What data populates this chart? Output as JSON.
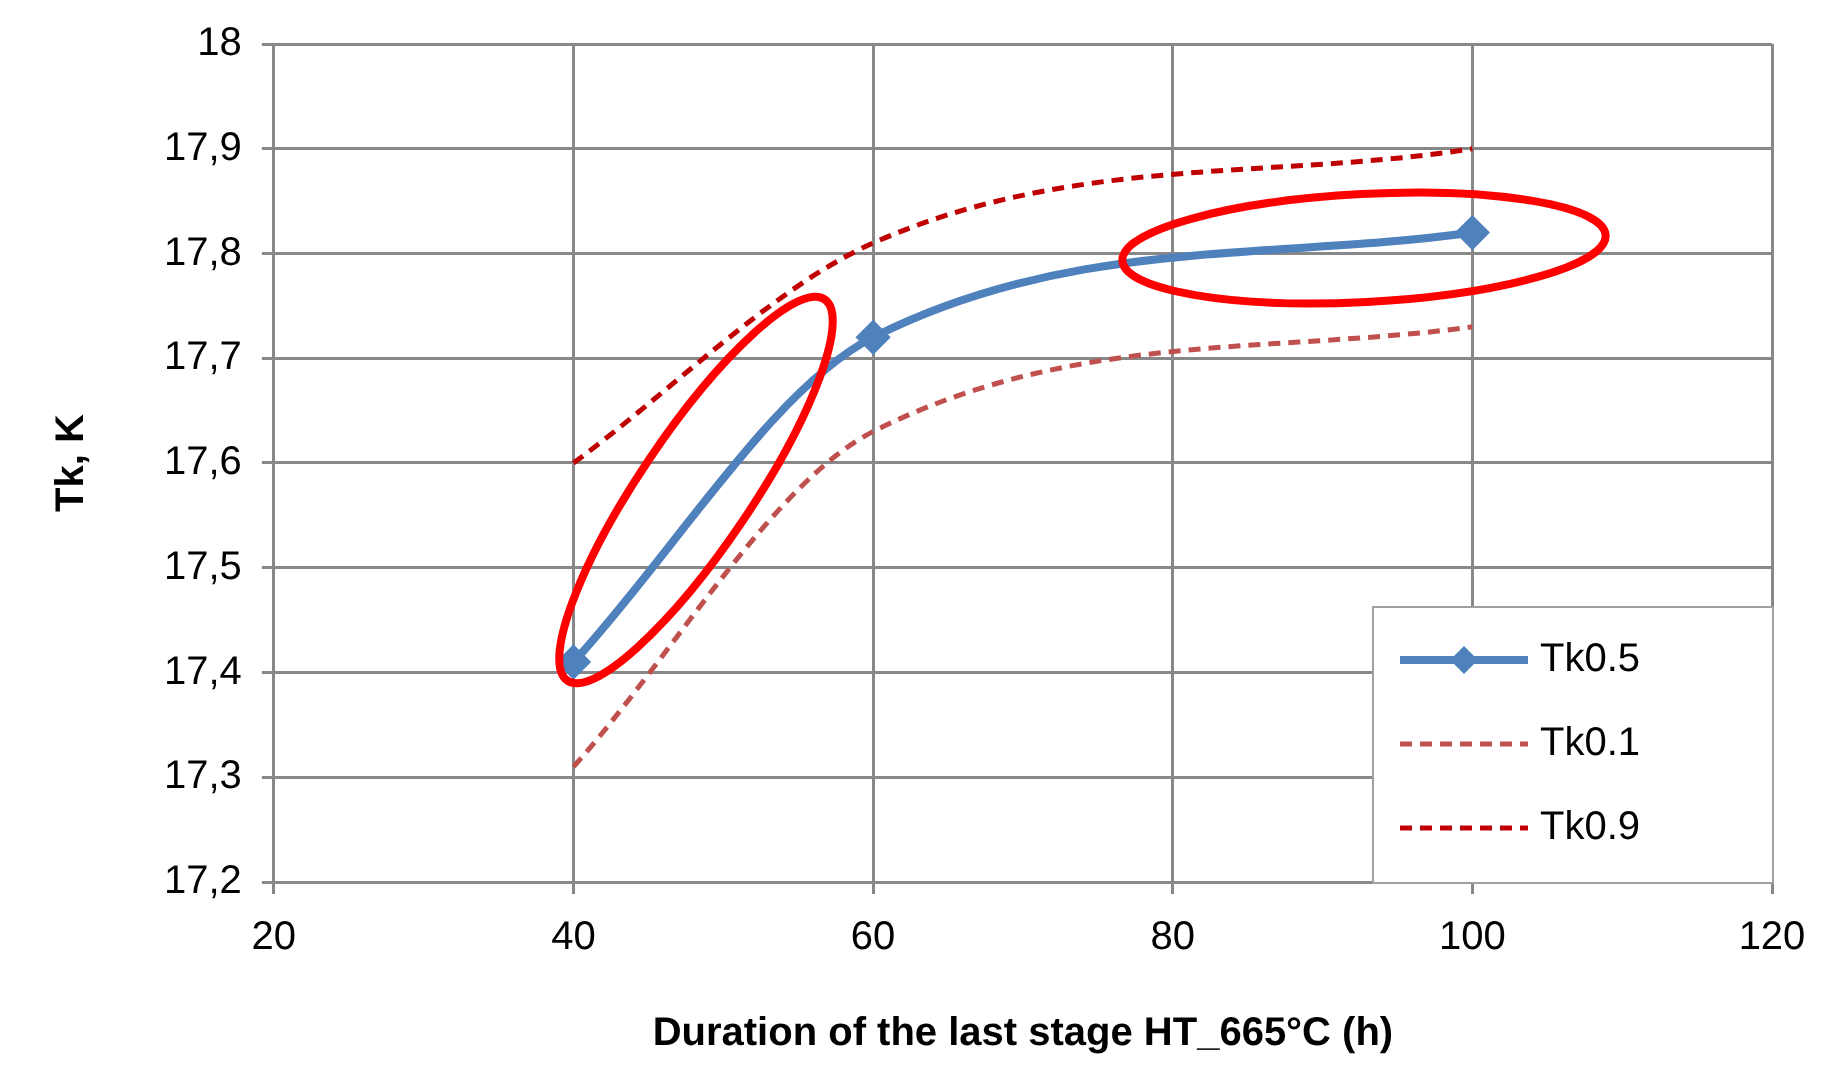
{
  "chart_data": {
    "type": "line",
    "xlabel": "Duration of the last stage HT_665°C (h)",
    "ylabel": "Tk, K",
    "xlim": [
      20,
      120
    ],
    "xticks": [
      20,
      40,
      60,
      80,
      100,
      120
    ],
    "ylim": [
      17.2,
      18
    ],
    "yticks": [
      {
        "value": 17.2,
        "label": "17,2"
      },
      {
        "value": 17.3,
        "label": "17,3"
      },
      {
        "value": 17.4,
        "label": "17,4"
      },
      {
        "value": 17.5,
        "label": "17,5"
      },
      {
        "value": 17.6,
        "label": "17,6"
      },
      {
        "value": 17.7,
        "label": "17,7"
      },
      {
        "value": 17.8,
        "label": "17,8"
      },
      {
        "value": 17.9,
        "label": "17,9"
      },
      {
        "value": 18,
        "label": "18"
      }
    ],
    "grid": true,
    "legend": "bottom right",
    "x": [
      40,
      60,
      100
    ],
    "series": [
      {
        "name": "Tk0.5",
        "color": "#4f81bd",
        "values": [
          17.41,
          17.72,
          17.82
        ],
        "marker": "diamond",
        "line_style": "solid"
      },
      {
        "name": "Tk0.1",
        "color": "#c0504d",
        "values": [
          17.31,
          17.63,
          17.73
        ],
        "marker": "none",
        "line_style": "dashed"
      },
      {
        "name": "Tk0.9",
        "color": "#c00000",
        "values": [
          17.6,
          17.81,
          17.9
        ],
        "marker": "none",
        "line_style": "dashed"
      }
    ]
  }
}
